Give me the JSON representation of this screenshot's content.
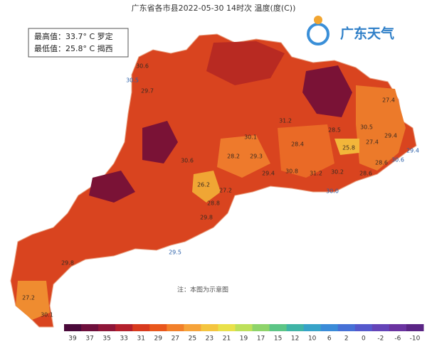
{
  "header": {
    "title": "广东省各市县2022-05-30 14时次 温度(度(C))"
  },
  "stats": {
    "max": "最高值：33.7° C 罗定",
    "min": "最低值：25.8° C 揭西"
  },
  "logo": {
    "text": "广东天气"
  },
  "note": "注：本图为示意图",
  "map": {
    "labels": [
      "30.6",
      "30.5",
      "29.7",
      "27.4",
      "30.1",
      "31.2",
      "28.5",
      "30.5",
      "29.4",
      "25.8",
      "27.4",
      "28.4",
      "28.2",
      "29.3",
      "28.6",
      "30.6",
      "29.4",
      "30.8",
      "30.2",
      "28.6",
      "30.0",
      "26.2",
      "27.2",
      "28.8",
      "29.8",
      "29.5",
      "27.2",
      "30.1",
      "29.4",
      "30.6",
      "31.2",
      "29.8"
    ]
  },
  "legend": {
    "ticks": [
      39,
      37,
      35,
      33,
      31,
      29,
      27,
      25,
      23,
      21,
      19,
      17,
      15,
      12,
      10,
      6,
      2,
      0,
      -2,
      -6,
      -10
    ],
    "colors": [
      "#4a0a3a",
      "#6e0f3c",
      "#8e1638",
      "#b3202c",
      "#d83a1e",
      "#e9571c",
      "#f2802a",
      "#f6a33a",
      "#f4c53f",
      "#e9e14a",
      "#bde05a",
      "#8ed46a",
      "#5cc586",
      "#3fb4a6",
      "#37a3c8",
      "#3a8bd8",
      "#4670d6",
      "#5558cc",
      "#6444b8",
      "#6a33a0",
      "#5a2585"
    ]
  }
}
